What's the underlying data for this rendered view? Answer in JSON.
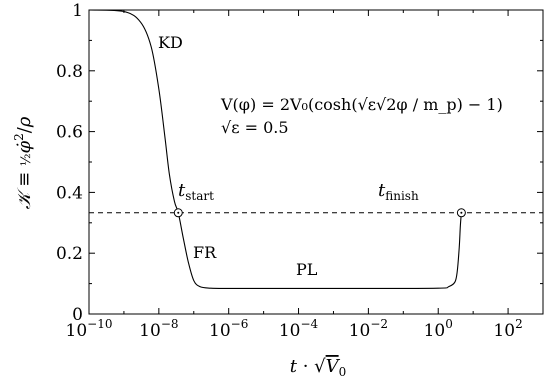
{
  "chart_data": {
    "type": "line",
    "title": "",
    "x_scale": "log",
    "xlim": [
      1e-10,
      1000.0
    ],
    "ylim": [
      0,
      1
    ],
    "xlabel": "t · √V₀",
    "ylabel": "𝒦 ≡ ½φ̇²/ρ",
    "grid": false,
    "x_ticks": [
      1e-10,
      1e-08,
      1e-06,
      0.0001,
      0.01,
      1.0,
      100.0
    ],
    "x_tick_labels": [
      {
        "base": "10",
        "exp": "−10"
      },
      {
        "base": "10",
        "exp": "−8"
      },
      {
        "base": "10",
        "exp": "−6"
      },
      {
        "base": "10",
        "exp": "−4"
      },
      {
        "base": "10",
        "exp": "−2"
      },
      {
        "base": "10",
        "exp": "0"
      },
      {
        "base": "10",
        "exp": "2"
      }
    ],
    "y_ticks": [
      0,
      0.2,
      0.4,
      0.6,
      0.8,
      1
    ],
    "y_tick_labels": [
      "0",
      "0.2",
      "0.4",
      "0.6",
      "0.8",
      "1"
    ],
    "series": [
      {
        "x": [
          1e-10,
          1e-09,
          3e-09,
          6e-09,
          1e-08,
          1.5e-08,
          2e-08,
          2.8e-08,
          3.6e-08,
          5e-08,
          7e-08,
          1e-07,
          1.5e-07,
          3e-07,
          1e-06,
          0.0001,
          0.01,
          1,
          2,
          3,
          3.5,
          4,
          4.3,
          4.6
        ],
        "y": [
          1.0,
          0.995,
          0.96,
          0.88,
          0.74,
          0.58,
          0.46,
          0.37,
          0.333,
          0.25,
          0.17,
          0.11,
          0.09,
          0.085,
          0.084,
          0.084,
          0.084,
          0.085,
          0.09,
          0.105,
          0.14,
          0.22,
          0.29,
          0.333
        ]
      }
    ],
    "reference_line": {
      "y": 0.333,
      "style": "dashed"
    },
    "markers": [
      {
        "x": 3.6e-08,
        "y": 0.333
      },
      {
        "x": 4.6,
        "y": 0.333
      }
    ],
    "annotations": {
      "kd": "KD",
      "fr": "FR",
      "pl": "PL",
      "t_start": {
        "main": "t",
        "sub": "start"
      },
      "t_finish": {
        "main": "t",
        "sub": "finish"
      },
      "potential": "V(φ) = 2V₀(cosh(√ε√2φ / m_p) − 1)",
      "eps": "√ε = 0.5"
    }
  }
}
